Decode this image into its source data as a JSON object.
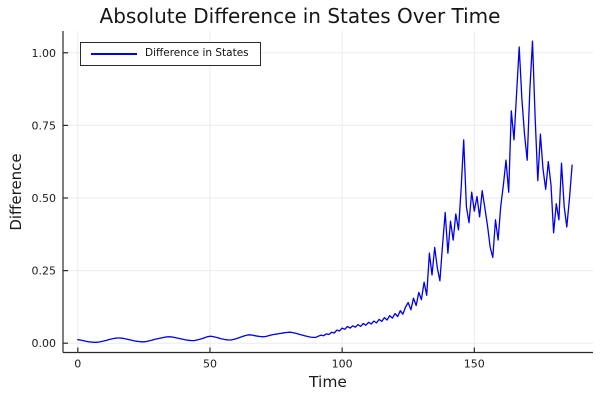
{
  "chart_data": {
    "type": "line",
    "title": "Absolute Difference in States Over Time",
    "xlabel": "Time",
    "ylabel": "Difference",
    "xlim": [
      -5.6,
      194.9
    ],
    "ylim": [
      -0.032,
      1.075
    ],
    "xticks": [
      0,
      50,
      100,
      150
    ],
    "xtick_labels": [
      "0",
      "50",
      "100",
      "150"
    ],
    "yticks": [
      0,
      0.25,
      0.5,
      0.75,
      1.0
    ],
    "ytick_labels": [
      "0.00",
      "0.25",
      "0.50",
      "0.75",
      "1.00"
    ],
    "grid": true,
    "grid_color": "#ebebeb",
    "axis_color": "#2a2a2a",
    "legend": {
      "position": "top-left",
      "entries": [
        {
          "label": "Difference in States",
          "color": "#0000ee"
        }
      ]
    },
    "series": [
      {
        "name": "Difference in States",
        "color": "#0000ee",
        "x_start": 0,
        "x_step": 1,
        "values": [
          0.012,
          0.011,
          0.009,
          0.007,
          0.005,
          0.004,
          0.003,
          0.003,
          0.004,
          0.006,
          0.008,
          0.01,
          0.013,
          0.015,
          0.017,
          0.018,
          0.018,
          0.017,
          0.015,
          0.013,
          0.011,
          0.009,
          0.007,
          0.006,
          0.005,
          0.005,
          0.006,
          0.008,
          0.01,
          0.013,
          0.015,
          0.017,
          0.019,
          0.021,
          0.022,
          0.022,
          0.021,
          0.019,
          0.017,
          0.015,
          0.013,
          0.011,
          0.01,
          0.009,
          0.009,
          0.011,
          0.013,
          0.016,
          0.019,
          0.022,
          0.024,
          0.023,
          0.021,
          0.019,
          0.016,
          0.014,
          0.012,
          0.011,
          0.011,
          0.013,
          0.016,
          0.019,
          0.022,
          0.025,
          0.028,
          0.029,
          0.028,
          0.026,
          0.024,
          0.023,
          0.022,
          0.023,
          0.025,
          0.028,
          0.03,
          0.031,
          0.033,
          0.034,
          0.036,
          0.037,
          0.038,
          0.037,
          0.035,
          0.033,
          0.03,
          0.028,
          0.025,
          0.023,
          0.021,
          0.02,
          0.02,
          0.024,
          0.028,
          0.026,
          0.032,
          0.03,
          0.038,
          0.035,
          0.045,
          0.042,
          0.052,
          0.048,
          0.058,
          0.052,
          0.06,
          0.055,
          0.064,
          0.058,
          0.068,
          0.062,
          0.072,
          0.066,
          0.076,
          0.07,
          0.082,
          0.075,
          0.088,
          0.08,
          0.095,
          0.086,
          0.102,
          0.092,
          0.112,
          0.1,
          0.125,
          0.14,
          0.115,
          0.155,
          0.13,
          0.175,
          0.15,
          0.21,
          0.165,
          0.31,
          0.235,
          0.33,
          0.26,
          0.215,
          0.34,
          0.45,
          0.31,
          0.42,
          0.355,
          0.445,
          0.39,
          0.53,
          0.7,
          0.47,
          0.415,
          0.52,
          0.455,
          0.505,
          0.435,
          0.525,
          0.465,
          0.405,
          0.33,
          0.295,
          0.425,
          0.355,
          0.47,
          0.545,
          0.63,
          0.52,
          0.8,
          0.7,
          0.86,
          1.02,
          0.84,
          0.72,
          0.63,
          0.87,
          1.04,
          0.78,
          0.56,
          0.72,
          0.6,
          0.53,
          0.625,
          0.545,
          0.38,
          0.48,
          0.425,
          0.62,
          0.47,
          0.4,
          0.5,
          0.613
        ]
      }
    ]
  }
}
